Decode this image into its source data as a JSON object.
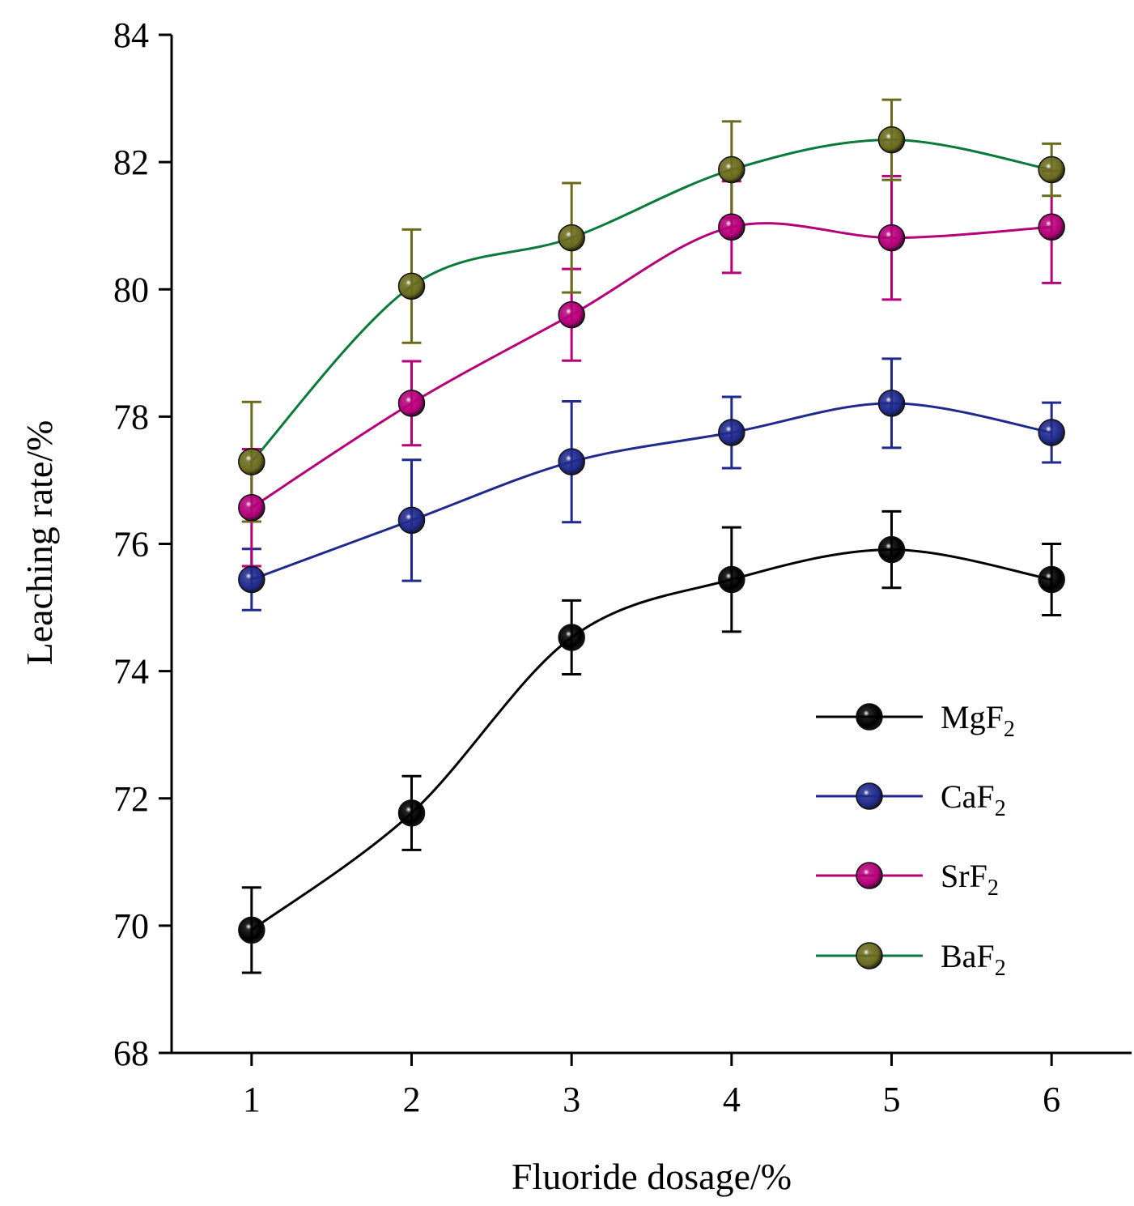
{
  "chart_data": {
    "type": "line",
    "xlabel": "Fluoride dosage/%",
    "ylabel": "Leaching rate/%",
    "x": [
      1,
      2,
      3,
      4,
      5,
      6
    ],
    "xlim": [
      0.5,
      6.5
    ],
    "ylim": [
      68,
      84
    ],
    "xticks": [
      "1",
      "2",
      "3",
      "4",
      "5",
      "6"
    ],
    "yticks": [
      "68",
      "70",
      "72",
      "74",
      "76",
      "78",
      "80",
      "82",
      "84"
    ],
    "grid": false,
    "legend_position": "bottom-right",
    "series": [
      {
        "name": "MgF",
        "subscript": "2",
        "color": "#000000",
        "values": [
          69.93,
          71.77,
          74.53,
          75.44,
          75.91,
          75.44
        ],
        "errors": [
          0.67,
          0.58,
          0.58,
          0.82,
          0.6,
          0.56
        ]
      },
      {
        "name": "CaF",
        "subscript": "2",
        "color": "#1f2a8c",
        "values": [
          75.44,
          76.37,
          77.29,
          77.75,
          78.21,
          77.75
        ],
        "errors": [
          0.48,
          0.95,
          0.95,
          0.56,
          0.7,
          0.47
        ]
      },
      {
        "name": "SrF",
        "subscript": "2",
        "color": "#b5007a",
        "values": [
          76.57,
          78.21,
          79.6,
          80.98,
          80.81,
          80.98
        ],
        "errors": [
          0.92,
          0.66,
          0.72,
          0.72,
          0.97,
          0.88
        ]
      },
      {
        "name": "BaF",
        "subscript": "2",
        "color": "#6b6b1e",
        "fit_color": "#0a7a3a",
        "values": [
          77.29,
          80.05,
          80.81,
          81.88,
          82.35,
          81.88
        ],
        "errors": [
          0.94,
          0.89,
          0.86,
          0.76,
          0.63,
          0.41
        ]
      }
    ]
  }
}
